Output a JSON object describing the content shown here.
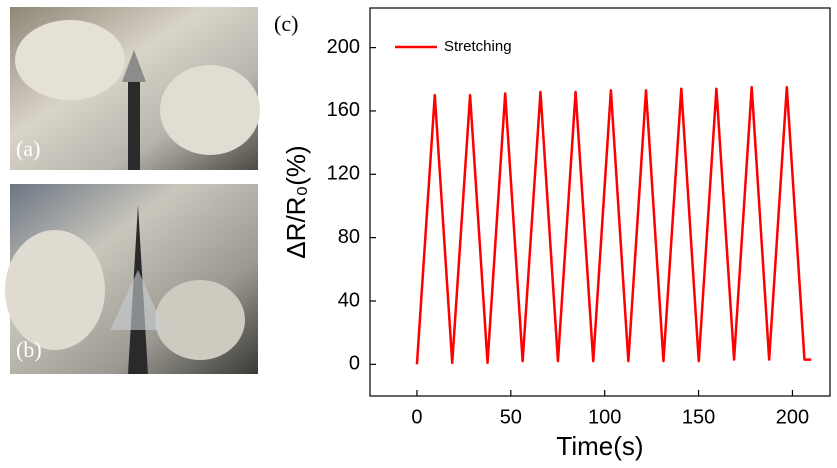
{
  "panel_labels": [
    "(a)",
    "(b)"
  ],
  "chart_data": {
    "type": "line",
    "panel_label": "(c)",
    "xlabel": "Time(s)",
    "ylabel": "ΔR/R₀(%)",
    "x": [
      0,
      9.5,
      18.8,
      28.3,
      37.6,
      47,
      56.3,
      65.8,
      75.1,
      84.5,
      93.9,
      103.3,
      112.6,
      122,
      131.3,
      140.8,
      150.1,
      159.5,
      168.9,
      178.3,
      187.6,
      197,
      206.4,
      210
    ],
    "series": [
      {
        "name": "Stretching",
        "color": "#ff0000",
        "values": [
          0,
          170,
          1,
          170,
          1,
          171,
          2,
          172,
          2,
          172,
          2,
          173,
          2,
          173,
          2,
          174,
          2,
          174,
          3,
          175,
          3,
          175,
          3,
          3
        ]
      }
    ],
    "xlim": [
      -25,
      220
    ],
    "xticks": [
      0,
      50,
      100,
      150,
      200
    ],
    "ylim": [
      -20,
      225
    ],
    "yticks": [
      0,
      40,
      80,
      120,
      160,
      200
    ],
    "legend": "upper left"
  }
}
